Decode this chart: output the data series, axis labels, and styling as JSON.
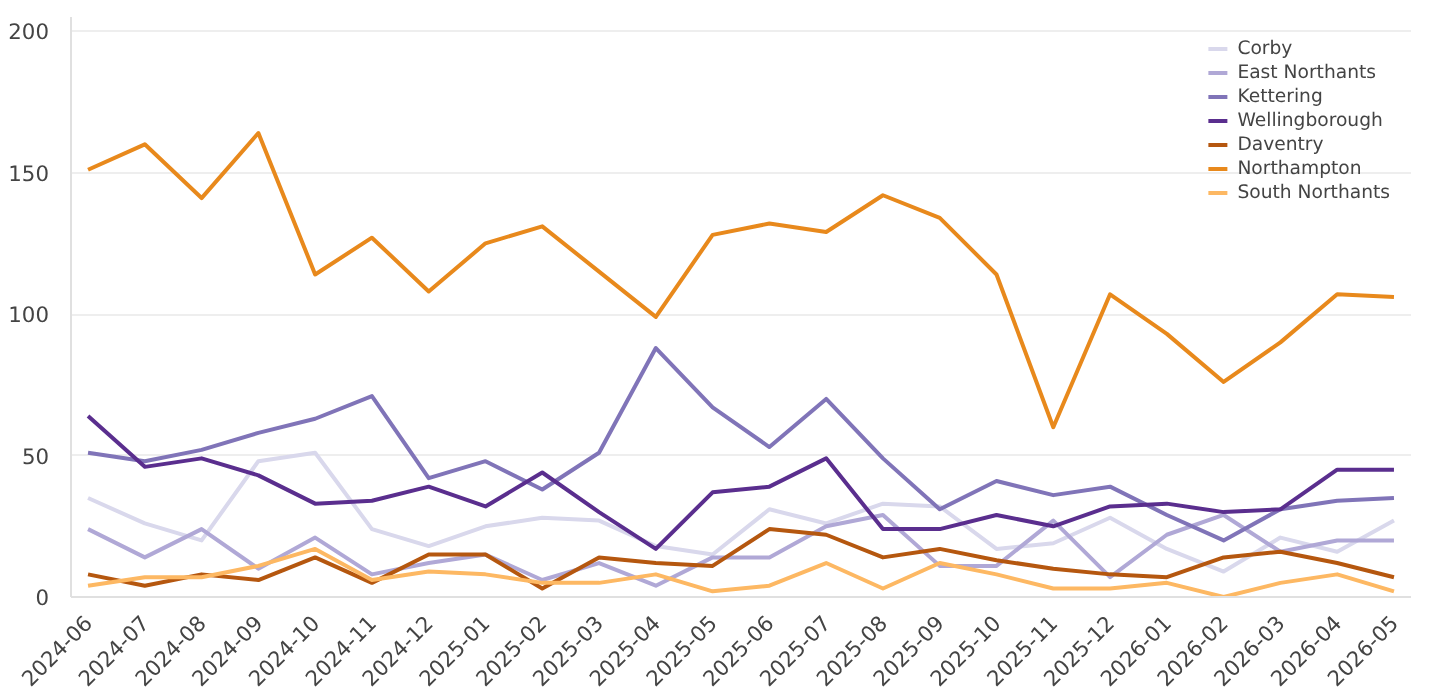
{
  "chart_data": {
    "type": "line",
    "categories": [
      "2024-06",
      "2024-07",
      "2024-08",
      "2024-09",
      "2024-10",
      "2024-11",
      "2024-12",
      "2025-01",
      "2025-02",
      "2025-03",
      "2025-04",
      "2025-05",
      "2025-06",
      "2025-07",
      "2025-08",
      "2025-09",
      "2025-10",
      "2025-11",
      "2025-12",
      "2026-01",
      "2026-02",
      "2026-03",
      "2026-04",
      "2026-05"
    ],
    "series": [
      {
        "name": "Corby",
        "color": "#d9d8ec",
        "values": [
          35,
          26,
          20,
          48,
          51,
          24,
          18,
          25,
          28,
          27,
          18,
          15,
          31,
          26,
          33,
          32,
          17,
          19,
          28,
          17,
          9,
          21,
          16,
          27
        ]
      },
      {
        "name": "East Northants",
        "color": "#b0a8d6",
        "values": [
          24,
          14,
          24,
          10,
          21,
          8,
          12,
          15,
          6,
          12,
          4,
          14,
          14,
          25,
          29,
          11,
          11,
          27,
          7,
          22,
          29,
          16,
          20,
          20
        ]
      },
      {
        "name": "Kettering",
        "color": "#8074b8",
        "values": [
          51,
          48,
          52,
          58,
          63,
          71,
          42,
          48,
          38,
          51,
          88,
          67,
          53,
          70,
          49,
          31,
          41,
          36,
          39,
          29,
          20,
          31,
          34,
          35
        ]
      },
      {
        "name": "Wellingborough",
        "color": "#5a2e8e",
        "values": [
          64,
          46,
          49,
          43,
          33,
          34,
          39,
          32,
          44,
          30,
          17,
          37,
          39,
          49,
          24,
          24,
          29,
          25,
          32,
          33,
          30,
          31,
          45,
          45
        ]
      },
      {
        "name": "Daventry",
        "color": "#b5570f",
        "values": [
          8,
          4,
          8,
          6,
          14,
          5,
          15,
          15,
          3,
          14,
          12,
          11,
          24,
          22,
          14,
          17,
          13,
          10,
          8,
          7,
          14,
          16,
          12,
          7
        ]
      },
      {
        "name": "Northampton",
        "color": "#e8891c",
        "values": [
          151,
          160,
          141,
          164,
          114,
          127,
          108,
          125,
          131,
          115,
          99,
          128,
          132,
          129,
          142,
          134,
          114,
          60,
          107,
          93,
          76,
          90,
          107,
          106
        ]
      },
      {
        "name": "South Northants",
        "color": "#fdb863",
        "values": [
          4,
          7,
          7,
          11,
          17,
          6,
          9,
          8,
          5,
          5,
          8,
          2,
          4,
          12,
          3,
          12,
          8,
          3,
          3,
          5,
          0,
          5,
          8,
          2
        ]
      }
    ],
    "ylim": [
      0,
      205
    ],
    "yticks": [
      0,
      50,
      100,
      150,
      200
    ],
    "grid": "y",
    "legend": "top right",
    "marker": "none",
    "line_style": "solid"
  }
}
